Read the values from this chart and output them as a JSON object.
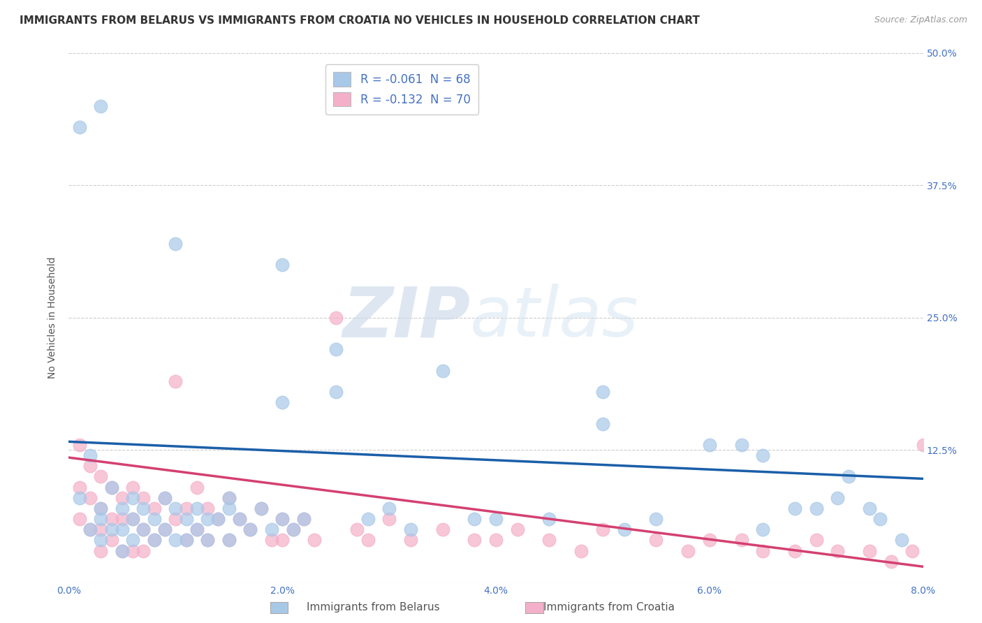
{
  "title": "IMMIGRANTS FROM BELARUS VS IMMIGRANTS FROM CROATIA NO VEHICLES IN HOUSEHOLD CORRELATION CHART",
  "source": "Source: ZipAtlas.com",
  "ylabel": "No Vehicles in Household",
  "legend_label1": "Immigrants from Belarus",
  "legend_label2": "Immigrants from Croatia",
  "R1": -0.061,
  "N1": 68,
  "R2": -0.132,
  "N2": 70,
  "xmin": 0.0,
  "xmax": 0.08,
  "ymin": 0.0,
  "ymax": 0.5,
  "yticks": [
    0.0,
    0.125,
    0.25,
    0.375,
    0.5
  ],
  "ytick_labels": [
    "",
    "12.5%",
    "25.0%",
    "37.5%",
    "50.0%"
  ],
  "xticks": [
    0.0,
    0.02,
    0.04,
    0.06,
    0.08
  ],
  "xtick_labels": [
    "0.0%",
    "2.0%",
    "4.0%",
    "6.0%",
    "8.0%"
  ],
  "color_blue": "#a8c8e8",
  "color_pink": "#f4b0c8",
  "color_line_blue": "#1a5fa8",
  "color_line_pink": "#d44070",
  "watermark_zip": "ZIP",
  "watermark_atlas": "atlas",
  "background_color": "#ffffff",
  "title_fontsize": 11,
  "axis_label_fontsize": 10,
  "tick_fontsize": 10,
  "legend_fontsize": 12,
  "blue_x": [
    0.001,
    0.001,
    0.002,
    0.002,
    0.003,
    0.003,
    0.003,
    0.004,
    0.004,
    0.005,
    0.005,
    0.005,
    0.006,
    0.006,
    0.006,
    0.007,
    0.007,
    0.008,
    0.008,
    0.009,
    0.009,
    0.01,
    0.01,
    0.01,
    0.011,
    0.011,
    0.012,
    0.012,
    0.013,
    0.013,
    0.014,
    0.015,
    0.015,
    0.016,
    0.017,
    0.018,
    0.019,
    0.02,
    0.02,
    0.021,
    0.022,
    0.025,
    0.028,
    0.03,
    0.032,
    0.035,
    0.038,
    0.04,
    0.045,
    0.05,
    0.052,
    0.055,
    0.06,
    0.063,
    0.065,
    0.068,
    0.07,
    0.072,
    0.075,
    0.076,
    0.078,
    0.003,
    0.015,
    0.02,
    0.025,
    0.05,
    0.065,
    0.073
  ],
  "blue_y": [
    0.43,
    0.08,
    0.12,
    0.05,
    0.07,
    0.06,
    0.04,
    0.09,
    0.05,
    0.07,
    0.05,
    0.03,
    0.08,
    0.06,
    0.04,
    0.07,
    0.05,
    0.06,
    0.04,
    0.08,
    0.05,
    0.32,
    0.07,
    0.04,
    0.06,
    0.04,
    0.07,
    0.05,
    0.06,
    0.04,
    0.06,
    0.08,
    0.04,
    0.06,
    0.05,
    0.07,
    0.05,
    0.3,
    0.06,
    0.05,
    0.06,
    0.18,
    0.06,
    0.07,
    0.05,
    0.2,
    0.06,
    0.06,
    0.06,
    0.18,
    0.05,
    0.06,
    0.13,
    0.13,
    0.05,
    0.07,
    0.07,
    0.08,
    0.07,
    0.06,
    0.04,
    0.45,
    0.07,
    0.17,
    0.22,
    0.15,
    0.12,
    0.1
  ],
  "pink_x": [
    0.001,
    0.001,
    0.001,
    0.002,
    0.002,
    0.002,
    0.003,
    0.003,
    0.003,
    0.003,
    0.004,
    0.004,
    0.004,
    0.005,
    0.005,
    0.005,
    0.006,
    0.006,
    0.006,
    0.007,
    0.007,
    0.007,
    0.008,
    0.008,
    0.009,
    0.009,
    0.01,
    0.01,
    0.011,
    0.011,
    0.012,
    0.012,
    0.013,
    0.013,
    0.014,
    0.015,
    0.015,
    0.016,
    0.017,
    0.018,
    0.019,
    0.02,
    0.02,
    0.021,
    0.022,
    0.023,
    0.025,
    0.027,
    0.028,
    0.03,
    0.032,
    0.035,
    0.038,
    0.04,
    0.042,
    0.045,
    0.048,
    0.05,
    0.055,
    0.058,
    0.06,
    0.063,
    0.065,
    0.068,
    0.07,
    0.072,
    0.075,
    0.077,
    0.079,
    0.08
  ],
  "pink_y": [
    0.13,
    0.09,
    0.06,
    0.11,
    0.08,
    0.05,
    0.1,
    0.07,
    0.05,
    0.03,
    0.09,
    0.06,
    0.04,
    0.08,
    0.06,
    0.03,
    0.09,
    0.06,
    0.03,
    0.08,
    0.05,
    0.03,
    0.07,
    0.04,
    0.08,
    0.05,
    0.19,
    0.06,
    0.07,
    0.04,
    0.09,
    0.05,
    0.07,
    0.04,
    0.06,
    0.08,
    0.04,
    0.06,
    0.05,
    0.07,
    0.04,
    0.06,
    0.04,
    0.05,
    0.06,
    0.04,
    0.25,
    0.05,
    0.04,
    0.06,
    0.04,
    0.05,
    0.04,
    0.04,
    0.05,
    0.04,
    0.03,
    0.05,
    0.04,
    0.03,
    0.04,
    0.04,
    0.03,
    0.03,
    0.04,
    0.03,
    0.03,
    0.02,
    0.03,
    0.13
  ],
  "blue_trend_x0": 0.0,
  "blue_trend_y0": 0.133,
  "blue_trend_x1": 0.08,
  "blue_trend_y1": 0.098,
  "pink_trend_x0": 0.0,
  "pink_trend_y0": 0.118,
  "pink_trend_x1": 0.08,
  "pink_trend_y1": 0.015
}
